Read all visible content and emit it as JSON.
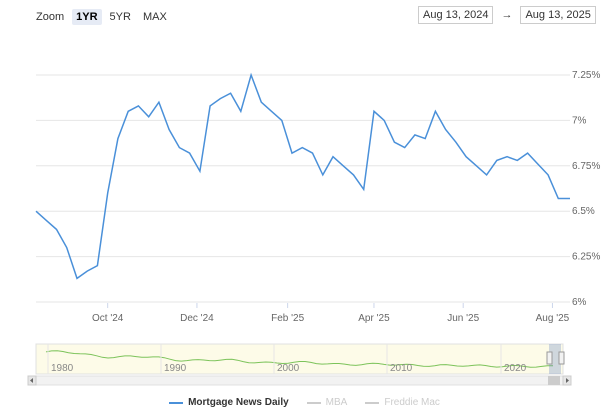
{
  "toolbar": {
    "zoom_label": "Zoom",
    "buttons": [
      "1YR",
      "5YR",
      "MAX"
    ],
    "active": "1YR",
    "from_date": "Aug 13, 2024",
    "arrow": "→",
    "to_date": "Aug 13, 2025"
  },
  "colors": {
    "series": "#4a90d9",
    "inactive": "#cccccc",
    "navigator_line": "#7cc35a",
    "navigator_fill": "#fdfbe8"
  },
  "chart_data": {
    "type": "line",
    "title": "",
    "xlabel": "",
    "ylabel": "",
    "x_ticks": [
      "Oct '24",
      "Dec '24",
      "Feb '25",
      "Apr '25",
      "Jun '25",
      "Aug '25"
    ],
    "y_ticks": [
      "6%",
      "6.25%",
      "6.5%",
      "6.75%",
      "7%",
      "7.25%"
    ],
    "ylim": [
      6.0,
      7.25
    ],
    "grid": true,
    "series": [
      {
        "name": "Mortgage News Daily",
        "x": [
          "2024-08-13",
          "2024-08-20",
          "2024-08-27",
          "2024-09-03",
          "2024-09-10",
          "2024-09-17",
          "2024-09-24",
          "2024-10-01",
          "2024-10-08",
          "2024-10-15",
          "2024-10-22",
          "2024-10-29",
          "2024-11-05",
          "2024-11-12",
          "2024-11-19",
          "2024-11-26",
          "2024-12-03",
          "2024-12-10",
          "2024-12-17",
          "2024-12-24",
          "2024-12-31",
          "2025-01-07",
          "2025-01-14",
          "2025-01-21",
          "2025-01-28",
          "2025-02-04",
          "2025-02-11",
          "2025-02-18",
          "2025-02-25",
          "2025-03-04",
          "2025-03-11",
          "2025-03-18",
          "2025-03-25",
          "2025-04-01",
          "2025-04-08",
          "2025-04-15",
          "2025-04-22",
          "2025-04-29",
          "2025-05-06",
          "2025-05-13",
          "2025-05-20",
          "2025-05-27",
          "2025-06-03",
          "2025-06-10",
          "2025-06-17",
          "2025-06-24",
          "2025-07-01",
          "2025-07-08",
          "2025-07-15",
          "2025-07-22",
          "2025-07-29",
          "2025-08-05",
          "2025-08-13"
        ],
        "values": [
          6.5,
          6.45,
          6.4,
          6.3,
          6.13,
          6.17,
          6.2,
          6.6,
          6.9,
          7.05,
          7.08,
          7.02,
          7.1,
          6.95,
          6.85,
          6.82,
          6.72,
          7.08,
          7.12,
          7.15,
          7.05,
          7.25,
          7.1,
          7.05,
          7.0,
          6.82,
          6.85,
          6.82,
          6.7,
          6.8,
          6.75,
          6.7,
          6.62,
          7.05,
          7.0,
          6.88,
          6.85,
          6.92,
          6.9,
          7.05,
          6.95,
          6.88,
          6.8,
          6.75,
          6.7,
          6.78,
          6.8,
          6.78,
          6.82,
          6.76,
          6.7,
          6.57,
          6.57
        ]
      }
    ],
    "navigator": {
      "x_ticks": [
        "1980",
        "1990",
        "2000",
        "2010",
        "2020"
      ]
    }
  },
  "legend": {
    "items": [
      "Mortgage News Daily",
      "MBA",
      "Freddie Mac"
    ]
  }
}
